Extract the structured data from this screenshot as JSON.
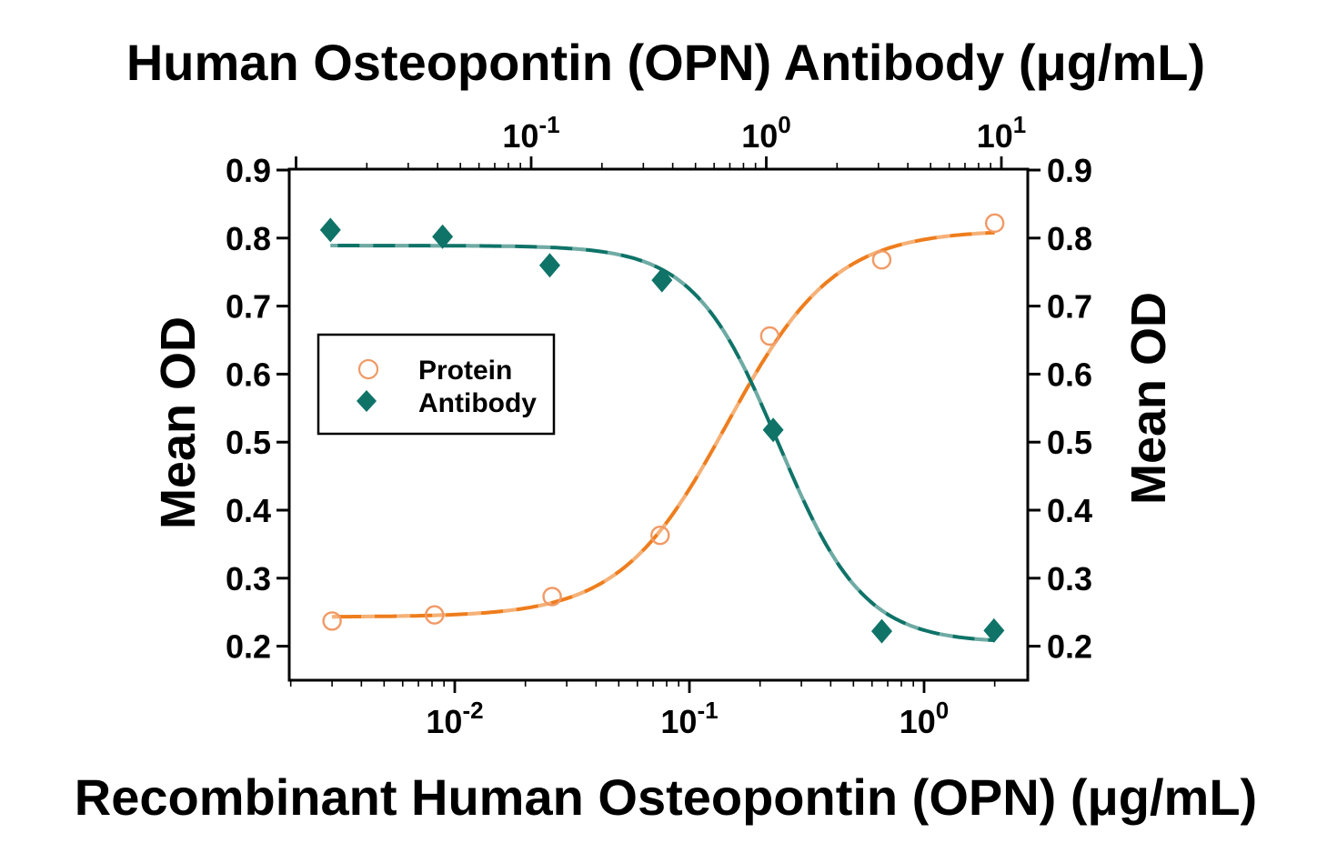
{
  "page": {
    "background": "#ffffff"
  },
  "chart_data": {
    "type": "scatter",
    "titles": {
      "top_axis": "Human Osteopontin (OPN) Antibody (μg/mL)",
      "bottom_axis": "Recombinant Human Osteopontin (OPN) (μg/mL)",
      "left_axis": "Mean OD",
      "right_axis": "Mean OD"
    },
    "y_axis": {
      "min": 0.15,
      "max": 0.9,
      "tick_values": [
        0.9,
        0.8,
        0.7,
        0.6,
        0.5,
        0.4,
        0.3,
        0.2
      ],
      "tick_labels": [
        "0.9",
        "0.8",
        "0.7",
        "0.6",
        "0.5",
        "0.4",
        "0.3",
        "0.2"
      ]
    },
    "x_axis_bottom": {
      "scale": "log10",
      "min": 0.002,
      "max": 2.8,
      "major_tick_values": [
        0.01,
        0.1,
        1
      ],
      "major_tick_labels": [
        {
          "mantissa": "10",
          "exponent": "-2"
        },
        {
          "mantissa": "10",
          "exponent": "-1"
        },
        {
          "mantissa": "10",
          "exponent": "0"
        }
      ]
    },
    "x_axis_top": {
      "scale": "log10",
      "min": 0.0094,
      "max": 13,
      "major_tick_values": [
        0.1,
        1,
        10
      ],
      "major_tick_labels": [
        {
          "mantissa": "10",
          "exponent": "-1"
        },
        {
          "mantissa": "10",
          "exponent": "0"
        },
        {
          "mantissa": "10",
          "exponent": "1"
        }
      ]
    },
    "legend": {
      "position": "upper-left-inside"
    },
    "series": [
      {
        "name": "Protein",
        "axis": "bottom",
        "marker": "open-circle",
        "line_color": "#EE7D1D",
        "marker_color": "#F09A66",
        "x": [
          0.003,
          0.0082,
          0.026,
          0.075,
          0.22,
          0.66,
          2.0
        ],
        "y": [
          0.237,
          0.246,
          0.273,
          0.363,
          0.656,
          0.768,
          0.822
        ],
        "fit": {
          "model": "4PL",
          "low": 0.243,
          "high": 0.812,
          "c50": 0.145,
          "hill": 1.9,
          "direction": "increasing"
        }
      },
      {
        "name": "Antibody",
        "axis": "top",
        "marker": "filled-diamond",
        "line_color": "#0F7368",
        "marker_color": "#0F7368",
        "x": [
          0.014,
          0.042,
          0.12,
          0.36,
          1.07,
          3.1,
          9.3
        ],
        "y": [
          0.812,
          0.802,
          0.76,
          0.738,
          0.518,
          0.222,
          0.223
        ],
        "fit": {
          "model": "4PL",
          "low": 0.205,
          "high": 0.789,
          "c50": 1.13,
          "hill": 2.4,
          "direction": "decreasing"
        }
      }
    ]
  }
}
